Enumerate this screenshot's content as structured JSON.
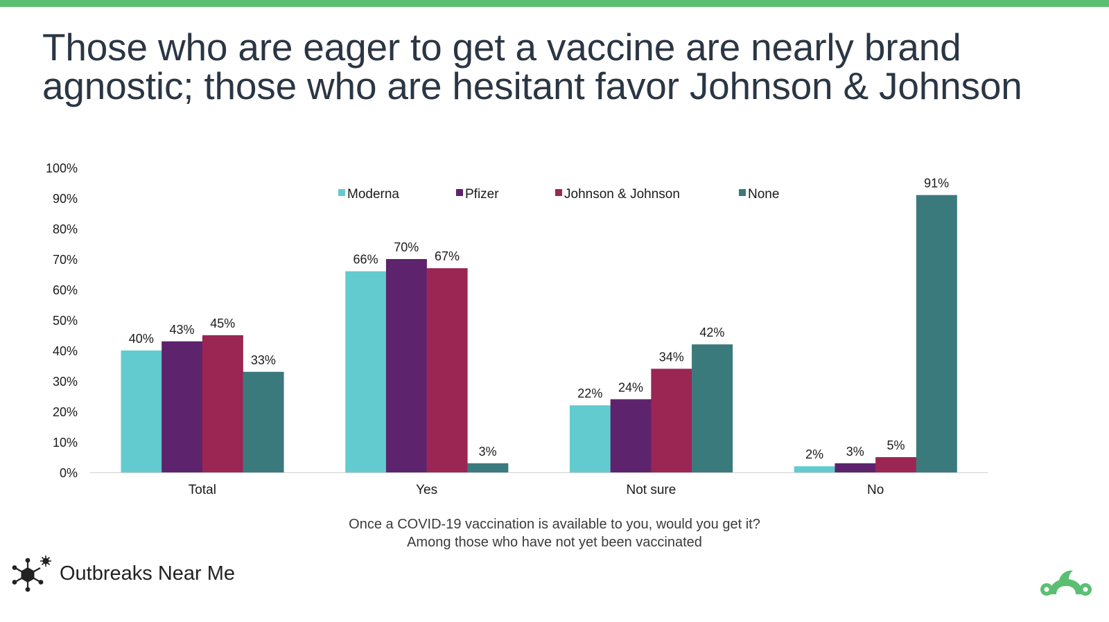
{
  "title": {
    "line1": "Those who are eager to get a vaccine are nearly brand",
    "line2": "agnostic; those who are hesitant favor Johnson & Johnson"
  },
  "caption": {
    "line1": "Once a COVID-19 vaccination is available to you, would you get it?",
    "line2": "Among those who have not yet been vaccinated"
  },
  "brand": {
    "name": "Outbreaks Near Me",
    "icon": "virus-icon"
  },
  "partner_logo": "surveymonkey-logo-icon",
  "colors": {
    "accent_bar": "#5bbf72",
    "Moderna": "#62cbd0",
    "Pfizer": "#5e236d",
    "Johnson & Johnson": "#9b2553",
    "None": "#3a7a7d",
    "logo_green": "#5bbf72"
  },
  "chart_data": {
    "type": "bar",
    "title": "",
    "xlabel": "",
    "ylabel": "",
    "categories": [
      "Total",
      "Yes",
      "Not sure",
      "No"
    ],
    "series": [
      {
        "name": "Moderna",
        "values": [
          40,
          66,
          22,
          2
        ],
        "labels": [
          "40%",
          "66%",
          "22%",
          "2%"
        ]
      },
      {
        "name": "Pfizer",
        "values": [
          43,
          70,
          24,
          3
        ],
        "labels": [
          "43%",
          "70%",
          "24%",
          "3%"
        ]
      },
      {
        "name": "Johnson & Johnson",
        "values": [
          45,
          67,
          34,
          5
        ],
        "labels": [
          "45%",
          "67%",
          "34%",
          "5%"
        ]
      },
      {
        "name": "None",
        "values": [
          33,
          3,
          42,
          91
        ],
        "labels": [
          "33%",
          "3%",
          "42%",
          "91%"
        ]
      }
    ],
    "yticks": [
      "0%",
      "10%",
      "20%",
      "30%",
      "40%",
      "50%",
      "60%",
      "70%",
      "80%",
      "90%",
      "100%"
    ],
    "ylim": [
      0,
      100
    ],
    "legend": "top",
    "grid": false
  }
}
